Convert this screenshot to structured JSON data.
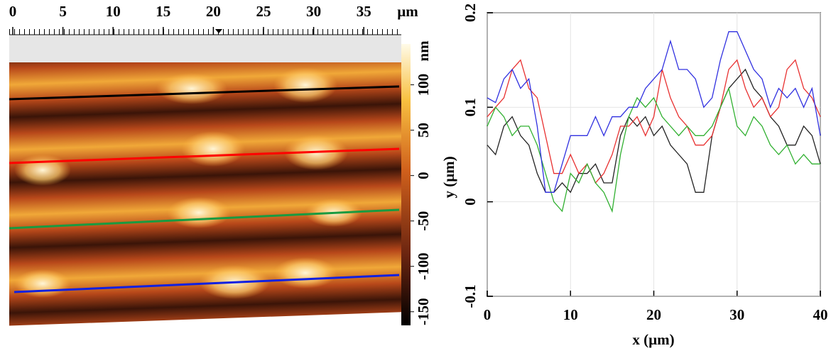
{
  "chart_data": [
    {
      "type": "image",
      "x_unit": "µm",
      "xlim": [
        0,
        39
      ],
      "xticks": [
        0,
        5,
        10,
        15,
        20,
        25,
        30,
        35
      ],
      "colorbar_label": "nm",
      "colorbar_lim": [
        -165,
        145
      ],
      "colorbar_ticks": [
        -150,
        -100,
        -50,
        0,
        50,
        100
      ]
    },
    {
      "type": "line",
      "xlabel": "x (µm)",
      "ylabel": "y (µm)",
      "xlim": [
        0,
        40
      ],
      "ylim": [
        -0.1,
        0.2
      ],
      "xticks": [
        0,
        10,
        20,
        30,
        40
      ],
      "yticks": [
        -0.1,
        0,
        0.1,
        0.2
      ],
      "grid": true,
      "x": [
        0,
        1,
        2,
        3,
        4,
        5,
        6,
        7,
        8,
        9,
        10,
        11,
        12,
        13,
        14,
        15,
        16,
        17,
        18,
        19,
        20,
        21,
        22,
        23,
        24,
        25,
        26,
        27,
        28,
        29,
        30,
        31,
        32,
        33,
        34,
        35,
        36,
        37,
        38,
        39,
        40
      ],
      "series": [
        {
          "color": "#222222",
          "values": [
            0.06,
            0.05,
            0.08,
            0.09,
            0.07,
            0.06,
            0.03,
            0.01,
            0.01,
            0.02,
            0.01,
            0.03,
            0.03,
            0.04,
            0.02,
            0.02,
            0.07,
            0.09,
            0.08,
            0.09,
            0.07,
            0.08,
            0.06,
            0.05,
            0.04,
            0.01,
            0.01,
            0.07,
            0.1,
            0.12,
            0.13,
            0.14,
            0.12,
            0.11,
            0.09,
            0.08,
            0.06,
            0.06,
            0.08,
            0.07,
            0.04
          ]
        },
        {
          "color": "#e83030",
          "values": [
            0.09,
            0.1,
            0.11,
            0.14,
            0.15,
            0.12,
            0.11,
            0.07,
            0.03,
            0.03,
            0.05,
            0.03,
            0.04,
            0.02,
            0.03,
            0.05,
            0.08,
            0.08,
            0.09,
            0.07,
            0.09,
            0.14,
            0.11,
            0.09,
            0.08,
            0.06,
            0.06,
            0.07,
            0.1,
            0.14,
            0.15,
            0.12,
            0.1,
            0.11,
            0.09,
            0.1,
            0.14,
            0.15,
            0.12,
            0.11,
            0.09
          ]
        },
        {
          "color": "#30b030",
          "values": [
            0.08,
            0.1,
            0.09,
            0.07,
            0.08,
            0.08,
            0.06,
            0.03,
            0.0,
            -0.01,
            0.03,
            0.02,
            0.04,
            0.02,
            0.01,
            -0.01,
            0.05,
            0.09,
            0.11,
            0.1,
            0.11,
            0.09,
            0.08,
            0.07,
            0.08,
            0.07,
            0.07,
            0.08,
            0.1,
            0.12,
            0.08,
            0.07,
            0.09,
            0.08,
            0.06,
            0.05,
            0.06,
            0.04,
            0.05,
            0.04,
            0.04
          ]
        },
        {
          "color": "#3030e0",
          "values": [
            0.11,
            0.105,
            0.13,
            0.14,
            0.12,
            0.13,
            0.08,
            0.01,
            0.01,
            0.04,
            0.07,
            0.07,
            0.07,
            0.09,
            0.07,
            0.09,
            0.09,
            0.1,
            0.1,
            0.12,
            0.13,
            0.14,
            0.17,
            0.14,
            0.14,
            0.13,
            0.1,
            0.11,
            0.15,
            0.18,
            0.18,
            0.16,
            0.14,
            0.13,
            0.1,
            0.12,
            0.11,
            0.12,
            0.1,
            0.12,
            0.07
          ]
        }
      ]
    }
  ]
}
